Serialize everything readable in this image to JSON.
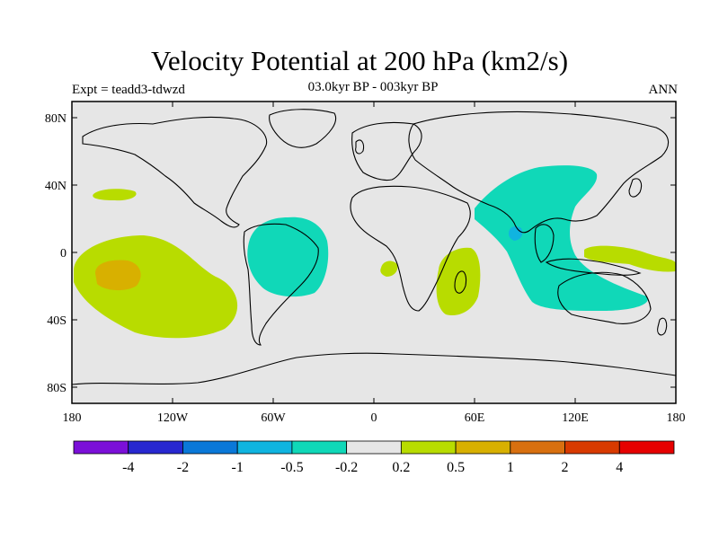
{
  "title": "Velocity Potential at 200 hPa (km2/s)",
  "experiment": "Expt = teadd3-tdwzd",
  "period": "03.0kyr BP - 003kyr BP",
  "season": "ANN",
  "lat_ticks": [
    "80N",
    "40N",
    "0",
    "40S",
    "80S"
  ],
  "lon_ticks": [
    "180",
    "120W",
    "60W",
    "0",
    "60E",
    "120E",
    "180"
  ],
  "colorbar": {
    "colors": [
      "#7b10d8",
      "#2828d0",
      "#0a78d8",
      "#10b4e0",
      "#10d8b8",
      "#e6e6e6",
      "#b8dc00",
      "#d8b000",
      "#d87010",
      "#d83a00",
      "#e60000"
    ],
    "labels": [
      "-4",
      "-2",
      "-1",
      "-0.5",
      "-0.2",
      "0.2",
      "0.5",
      "1",
      "2",
      "4"
    ]
  },
  "map_colors": {
    "ocean_bg": "#e6e6e6",
    "positive_light": "#b8dc00",
    "positive_mid": "#d8b000",
    "negative_light": "#10d8b8",
    "negative_mid": "#10b4e0",
    "coast": "#000000"
  }
}
